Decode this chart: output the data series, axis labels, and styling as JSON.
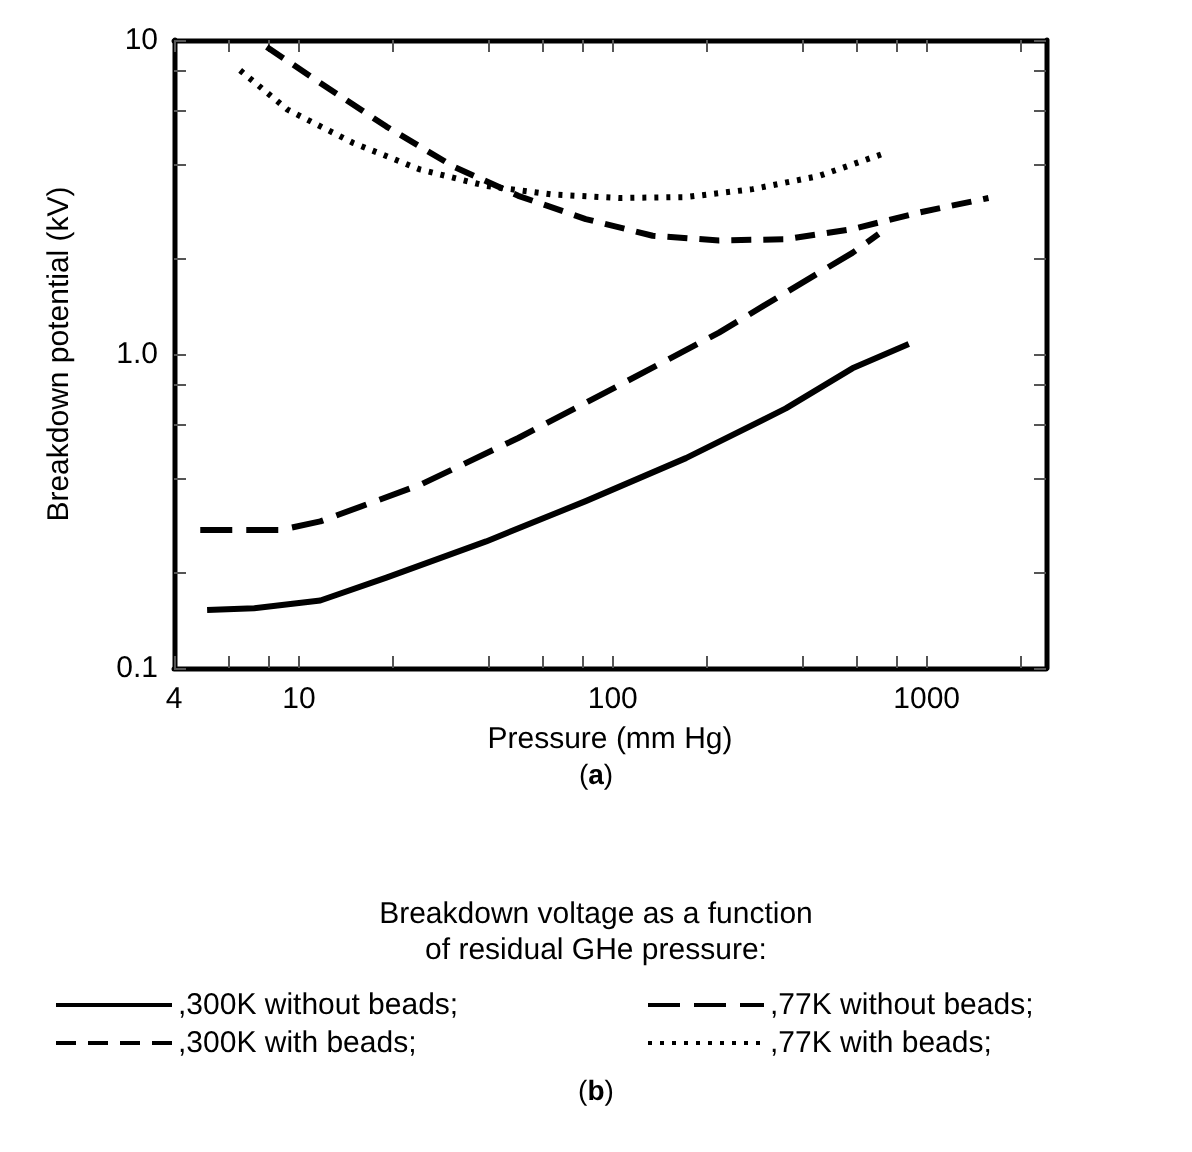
{
  "chart_data": {
    "type": "line",
    "xlabel": "Pressure (mm Hg)",
    "ylabel": "Breakdown potential (kV)",
    "legend_title": "Breakdown voltage as a function\nof residual GHe pressure:",
    "annotations": [
      "(a)",
      "(b)"
    ],
    "log": "xy",
    "grid": false,
    "legend": "bottom",
    "marker": "none",
    "xlim": [
      4,
      2400
    ],
    "xticks": [
      4,
      {
        "value": 6,
        "label": null
      },
      {
        "value": 8,
        "label": null
      },
      10,
      {
        "value": 20,
        "label": null
      },
      {
        "value": 40,
        "label": null
      },
      {
        "value": 60,
        "label": null
      },
      {
        "value": 80,
        "label": null
      },
      100,
      {
        "value": 200,
        "label": null
      },
      {
        "value": 400,
        "label": null
      },
      {
        "value": 600,
        "label": null
      },
      {
        "value": 800,
        "label": null
      },
      1000,
      {
        "value": 2000,
        "label": null
      }
    ],
    "ylim": [
      0.1,
      10
    ],
    "yticks": [
      0.1,
      {
        "value": 0.2,
        "label": null
      },
      {
        "value": 0.4,
        "label": null
      },
      {
        "value": 0.6,
        "label": null
      },
      {
        "value": 0.8,
        "label": null
      },
      {
        "value": 1,
        "label": "1.0"
      },
      {
        "value": 2,
        "label": null
      },
      {
        "value": 4,
        "label": null
      },
      {
        "value": 6,
        "label": null
      },
      {
        "value": 8,
        "label": null
      },
      10
    ],
    "series": [
      {
        "name": ",300K without beads;",
        "color": "#000000",
        "line_style": "solid",
        "x": [
          5.1,
          7.2,
          11.7,
          19,
          39.5,
          82,
          171,
          356,
          580,
          877
        ],
        "values": [
          0.153,
          0.155,
          0.164,
          0.194,
          0.253,
          0.34,
          0.466,
          0.671,
          0.9,
          1.076
        ]
      },
      {
        "name": ",77K without beads;",
        "color": "#000000",
        "line_style": "dashed",
        "x": [
          4.85,
          8.7,
          11.7,
          24.3,
          50,
          105,
          218,
          356,
          580,
          703
        ],
        "values": [
          0.275,
          0.275,
          0.293,
          0.383,
          0.54,
          0.796,
          1.17,
          1.57,
          2.1,
          2.41
        ]
      },
      {
        "name": ",300K with beads;",
        "color": "#000000",
        "line_style": "dashed",
        "x": [
          7.9,
          11.7,
          19,
          31,
          50,
          82,
          134,
          218,
          356,
          580,
          944,
          1574
        ],
        "values": [
          9.5,
          7.3,
          5.3,
          3.96,
          3.19,
          2.69,
          2.38,
          2.3,
          2.32,
          2.5,
          2.82,
          3.14
        ]
      },
      {
        "name": ",77K with beads;",
        "color": "#000000",
        "line_style": "dotted",
        "x": [
          6.5,
          9.2,
          14.9,
          24.3,
          39.5,
          64,
          105,
          171,
          279,
          454,
          721
        ],
        "values": [
          8.0,
          6.0,
          4.7,
          3.87,
          3.43,
          3.22,
          3.14,
          3.16,
          3.35,
          3.69,
          4.33
        ]
      }
    ]
  }
}
